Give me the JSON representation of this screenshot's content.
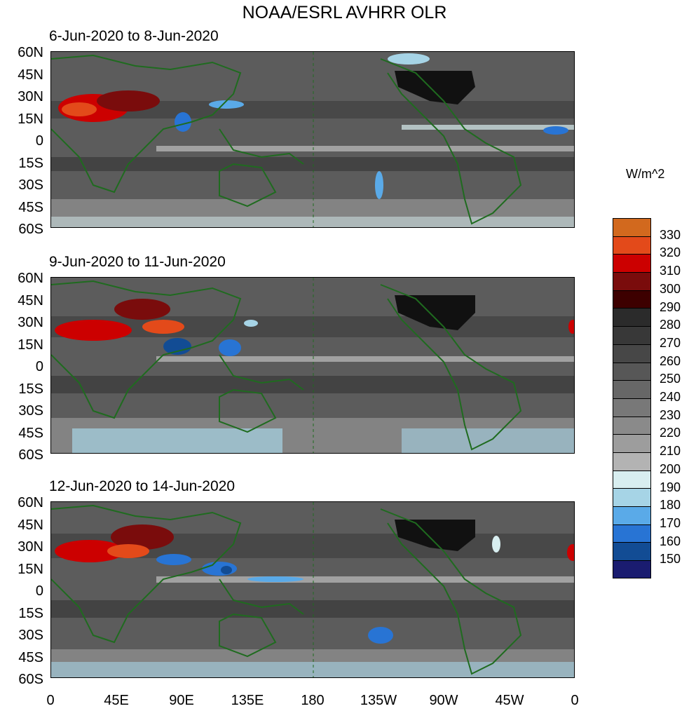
{
  "title": "NOAA/ESRL AVHRR OLR",
  "panels": [
    {
      "label": "6-Jun-2020 to 8-Jun-2020"
    },
    {
      "label": "9-Jun-2020 to 11-Jun-2020"
    },
    {
      "label": "12-Jun-2020 to 14-Jun-2020"
    }
  ],
  "lat_labels": [
    "60N",
    "45N",
    "30N",
    "15N",
    "0",
    "15S",
    "30S",
    "45S",
    "60S"
  ],
  "lon_labels": [
    "0",
    "45E",
    "90E",
    "135E",
    "180",
    "135W",
    "90W",
    "45W",
    "0"
  ],
  "legend": {
    "unit": "W/m^2",
    "levels": [
      "330",
      "320",
      "310",
      "300",
      "290",
      "280",
      "270",
      "260",
      "250",
      "240",
      "230",
      "220",
      "210",
      "200",
      "190",
      "180",
      "170",
      "160",
      "150"
    ],
    "colors": [
      "#d2691e",
      "#e34a1a",
      "#cc0000",
      "#7a0c0c",
      "#3d0000",
      "#2b2b2b",
      "#383838",
      "#474747",
      "#575757",
      "#676767",
      "#787878",
      "#8a8a8a",
      "#9d9d9d",
      "#b3b3b3",
      "#d8eef0",
      "#a6d4e6",
      "#5aaae8",
      "#2874d4",
      "#124c94",
      "#1a1c70"
    ]
  }
}
